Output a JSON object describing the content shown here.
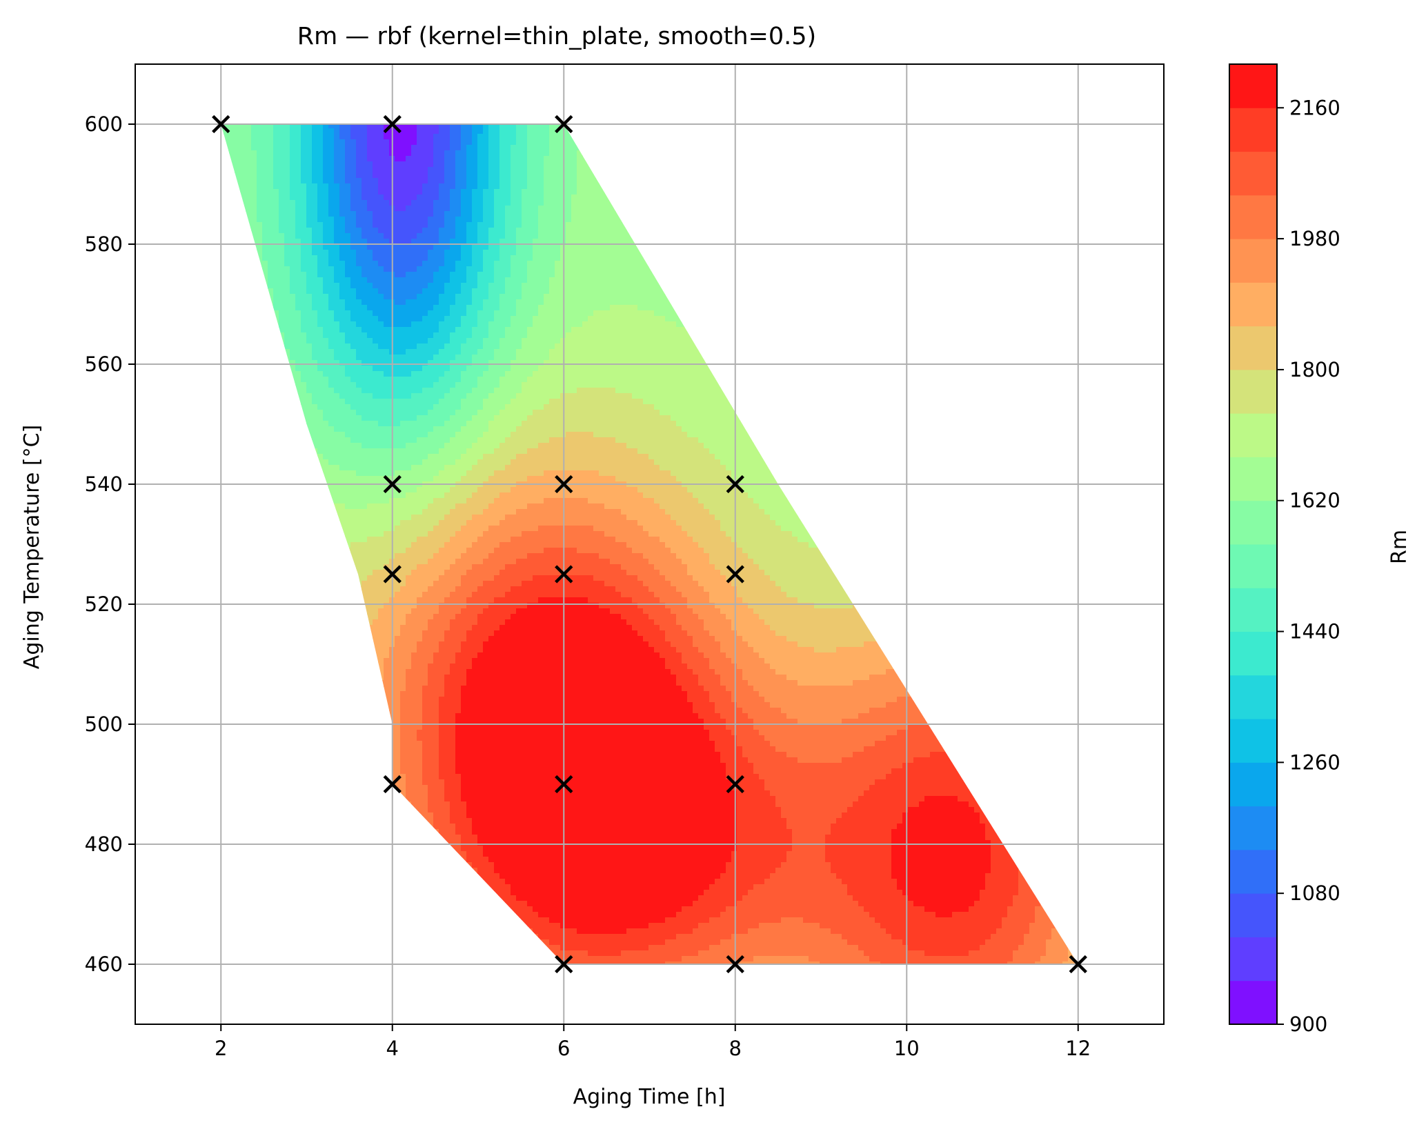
{
  "chart_data": {
    "type": "contourf",
    "title": "Rm — rbf (kernel=thin_plate, smooth=0.5)",
    "xlabel": "Aging Time [h]",
    "ylabel": "Aging Temperature [°C]",
    "xlim": [
      1,
      13
    ],
    "ylim": [
      450,
      610
    ],
    "xticks": [
      2,
      4,
      6,
      8,
      10,
      12
    ],
    "yticks": [
      460,
      480,
      500,
      520,
      540,
      560,
      580,
      600
    ],
    "grid": true,
    "colormap": "rainbow",
    "colorbar": {
      "label": "Rm",
      "range": [
        900,
        2220
      ],
      "ticks": [
        900,
        1080,
        1260,
        1440,
        1620,
        1800,
        1980,
        2160
      ],
      "levels": [
        900,
        960,
        1020,
        1080,
        1140,
        1200,
        1260,
        1320,
        1380,
        1440,
        1500,
        1560,
        1620,
        1680,
        1740,
        1800,
        1860,
        1920,
        1980,
        2040,
        2100,
        2160,
        2220
      ],
      "colors": [
        "#7f10ff",
        "#5f3eff",
        "#4555fc",
        "#306ff8",
        "#1d8cf3",
        "#0aa7ed",
        "#0fc2e6",
        "#23d6dd",
        "#3ceacf",
        "#55f2c2",
        "#6ef9b3",
        "#87fca4",
        "#a3fd94",
        "#bcf987",
        "#d4e37a",
        "#ecc86e",
        "#ffae62",
        "#ff9352",
        "#ff7843",
        "#ff5b34",
        "#ff3d25",
        "#ff1616"
      ]
    },
    "samples": [
      {
        "x": 2,
        "y": 600
      },
      {
        "x": 4,
        "y": 600
      },
      {
        "x": 6,
        "y": 600
      },
      {
        "x": 4,
        "y": 540
      },
      {
        "x": 6,
        "y": 540
      },
      {
        "x": 8,
        "y": 540
      },
      {
        "x": 4,
        "y": 525
      },
      {
        "x": 6,
        "y": 525
      },
      {
        "x": 8,
        "y": 525
      },
      {
        "x": 4,
        "y": 490
      },
      {
        "x": 6,
        "y": 490
      },
      {
        "x": 8,
        "y": 490
      },
      {
        "x": 6,
        "y": 460
      },
      {
        "x": 8,
        "y": 460
      },
      {
        "x": 12,
        "y": 460
      }
    ],
    "domain": {
      "left_edge": [
        [
          2,
          600
        ],
        [
          2.4,
          580
        ],
        [
          3.0,
          550
        ],
        [
          3.6,
          525
        ],
        [
          4.0,
          500
        ],
        [
          4.0,
          490
        ],
        [
          6.0,
          460
        ]
      ],
      "right_edge": [
        [
          6.0,
          600
        ],
        [
          8.5,
          540
        ],
        [
          12.0,
          460
        ]
      ]
    },
    "surface": {
      "base": 1650,
      "bumps": [
        {
          "x": 6.2,
          "y": 490,
          "amp": 580,
          "sx": 1.3,
          "sy": 28
        },
        {
          "x": 10.6,
          "y": 478,
          "amp": 520,
          "sx": 1.3,
          "sy": 28
        },
        {
          "x": 4.1,
          "y": 604,
          "amp": -720,
          "sx": 0.85,
          "sy": 38
        },
        {
          "x": 5.0,
          "y": 512,
          "amp": 250,
          "sx": 1.8,
          "sy": 30
        },
        {
          "x": 8.0,
          "y": 478,
          "amp": 200,
          "sx": 1.2,
          "sy": 20
        }
      ]
    }
  }
}
